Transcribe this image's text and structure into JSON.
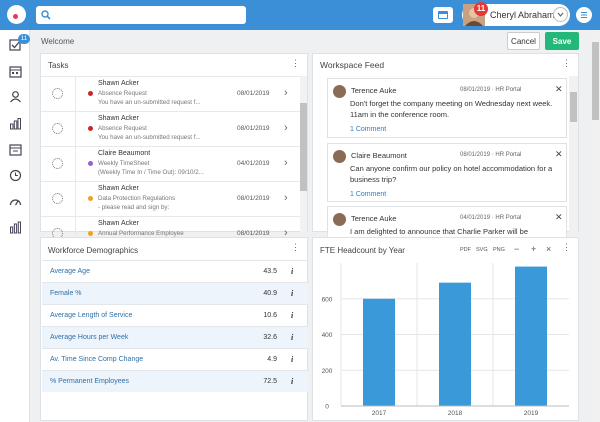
{
  "header": {
    "search_placeholder": "",
    "user_name": "Cheryl Abrahams",
    "notification_count": "11"
  },
  "sidebar": {
    "badge": "11",
    "items": [
      "tasks-icon",
      "calendar-icon",
      "people-icon",
      "reports-icon",
      "schedule-icon",
      "clock-icon",
      "dashboard-icon",
      "analytics-icon"
    ]
  },
  "page": {
    "breadcrumb": "Welcome",
    "cancel_label": "Cancel",
    "save_label": "Save"
  },
  "tasks": {
    "title": "Tasks",
    "rows": [
      {
        "name": "Shawn Acker",
        "type": "Absence Request",
        "desc": "You have an un-submitted request f...",
        "date": "08/01/2019",
        "dot": "#c62828"
      },
      {
        "name": "Shawn Acker",
        "type": "Absence Request",
        "desc": "You have an un-submitted request f...",
        "date": "08/01/2019",
        "dot": "#c62828"
      },
      {
        "name": "Claire Beaumont",
        "type": "Weekly TimeSheet",
        "desc": "(Weekly Time In / Time Out): 09/10/2...",
        "date": "04/01/2019",
        "dot": "#9c5fc4"
      },
      {
        "name": "Shawn Acker",
        "type": "Data Protection Regulations",
        "desc": "- please read and sign by:",
        "date": "08/01/2019",
        "dot": "#f0a020"
      },
      {
        "name": "Shawn Acker",
        "type": "Annual Performance Employee",
        "desc": "",
        "date": "08/01/2019",
        "dot": "#f0a020"
      }
    ]
  },
  "feed": {
    "title": "Workspace Feed",
    "posts": [
      {
        "author": "Terence Auke",
        "meta": "08/01/2019 · HR Portal",
        "text": "Don't forget the company meeting on Wednesday next week. 11am in the conference room.",
        "comments": "1 Comment"
      },
      {
        "author": "Claire Beaumont",
        "meta": "08/01/2019 · HR Portal",
        "text": "Can anyone confirm our policy on hotel accommodation for a business trip?",
        "comments": "1 Comment"
      },
      {
        "author": "Terence Auke",
        "meta": "04/01/2019 · HR Portal",
        "text": "I am delighted to announce that Charlie Parker will be",
        "comments": ""
      }
    ]
  },
  "demographics": {
    "title": "Workforce Demographics",
    "rows": [
      {
        "label": "Average Age",
        "value": "43.5"
      },
      {
        "label": "Female %",
        "value": "40.9"
      },
      {
        "label": "Average Length of Service",
        "value": "10.6"
      },
      {
        "label": "Average Hours per Week",
        "value": "32.6"
      },
      {
        "label": "Av. Time Since Comp Change",
        "value": "4.9"
      },
      {
        "label": "% Permanent Employees",
        "value": "72.5"
      }
    ],
    "info_glyph": "i"
  },
  "fte": {
    "title": "FTE Headcount by Year",
    "exports": [
      "PDF",
      "SVG",
      "PNG"
    ],
    "tools": [
      "−",
      "+",
      "×"
    ]
  },
  "chart_data": {
    "type": "bar",
    "title": "FTE Headcount by Year",
    "categories": [
      "2017",
      "2018",
      "2019"
    ],
    "values": [
      600,
      690,
      780
    ],
    "yticks": [
      0,
      200,
      400,
      600
    ],
    "ylim": [
      0,
      800
    ],
    "color": "#3a9ad9",
    "grid": true
  },
  "colors": {
    "accent": "#3a8fd6",
    "save": "#23b77a",
    "badge": "#e53935"
  }
}
